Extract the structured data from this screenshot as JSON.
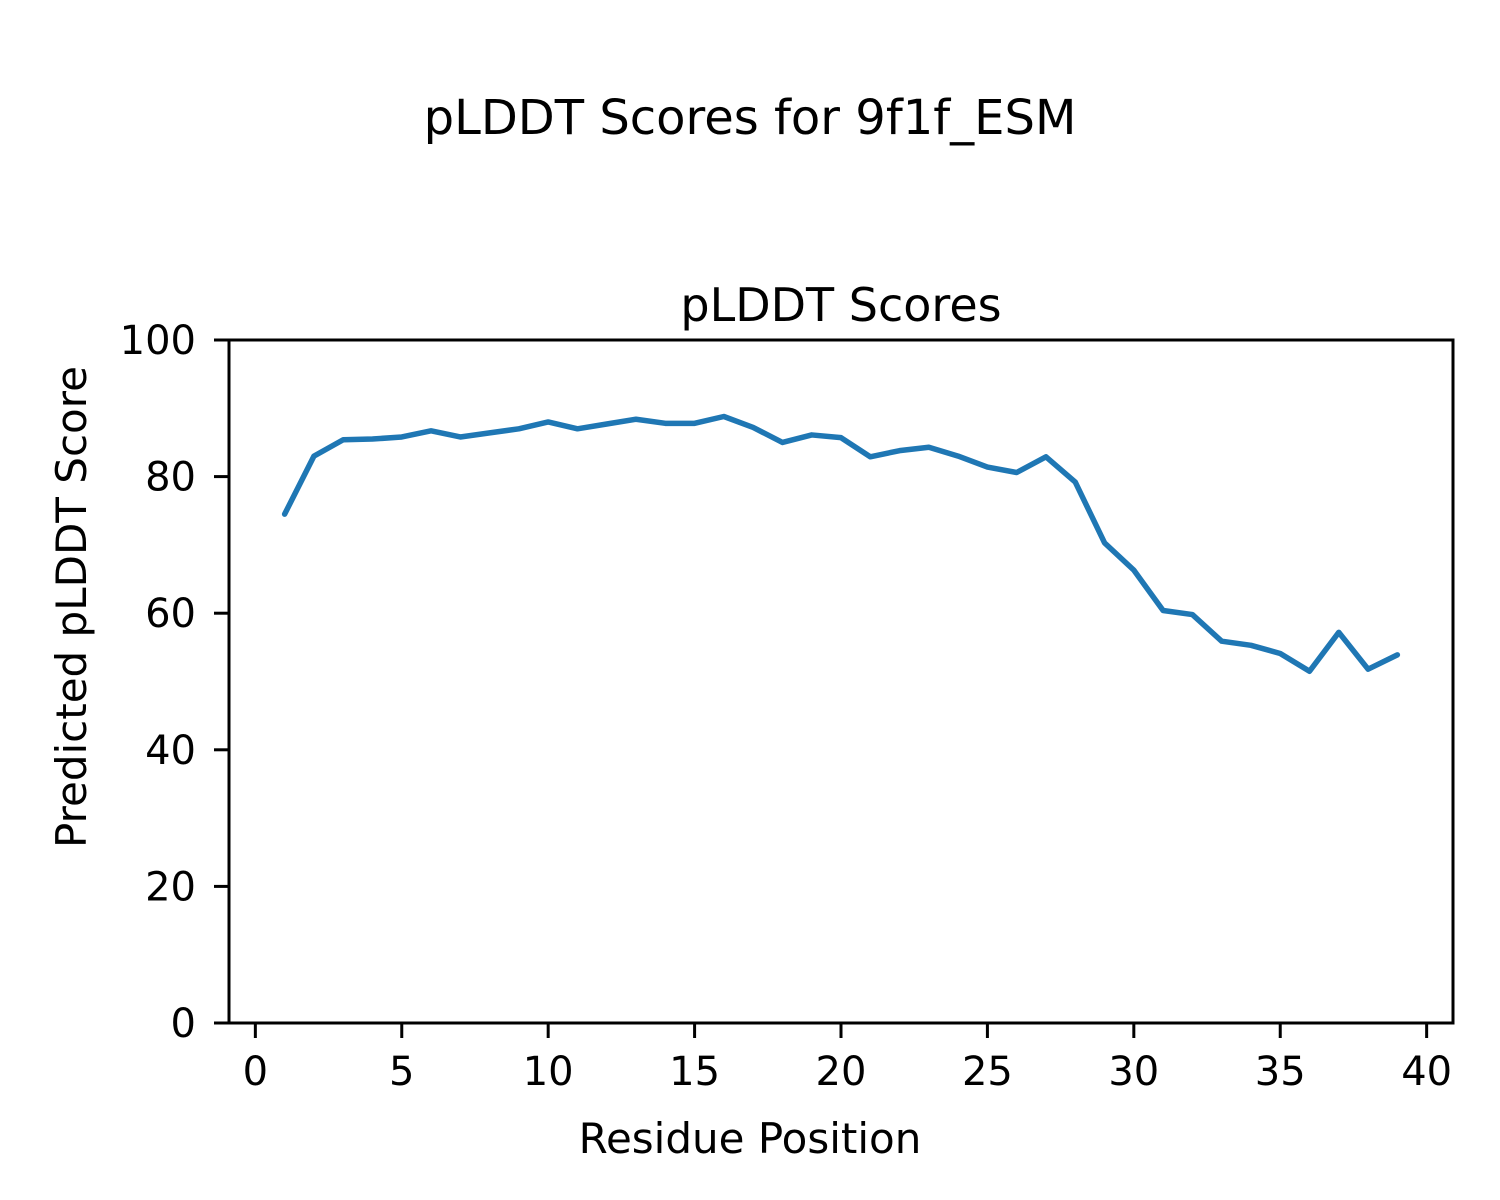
{
  "figure_title": "pLDDT Scores for 9f1f_ESM",
  "chart_data": {
    "type": "line",
    "title": "pLDDT Scores",
    "xlabel": "Residue Position",
    "ylabel": "Predicted pLDDT Score",
    "x": [
      1,
      2,
      3,
      4,
      5,
      6,
      7,
      8,
      9,
      10,
      11,
      12,
      13,
      14,
      15,
      16,
      17,
      18,
      19,
      20,
      21,
      22,
      23,
      24,
      25,
      26,
      27,
      28,
      29,
      30,
      31,
      32,
      33,
      34,
      35,
      36,
      37,
      38,
      39
    ],
    "y": [
      74.5,
      83.0,
      85.4,
      85.5,
      85.8,
      86.7,
      85.8,
      86.4,
      87.0,
      88.0,
      87.0,
      87.7,
      88.4,
      87.8,
      87.8,
      88.8,
      87.2,
      85.0,
      86.1,
      85.7,
      82.9,
      83.8,
      84.3,
      83.0,
      81.4,
      80.6,
      82.9,
      79.2,
      70.3,
      66.3,
      60.4,
      59.8,
      55.9,
      55.3,
      54.1,
      51.5,
      57.2,
      51.8,
      53.9
    ],
    "xlim": [
      -0.9,
      40.9
    ],
    "ylim": [
      0,
      100
    ],
    "xticks": [
      0,
      5,
      10,
      15,
      20,
      25,
      30,
      35,
      40
    ],
    "yticks": [
      0,
      20,
      40,
      60,
      80,
      100
    ],
    "grid": false,
    "legend": "none",
    "line_color": "#1f77b4",
    "axis_color": "#000000",
    "background": "#ffffff"
  }
}
